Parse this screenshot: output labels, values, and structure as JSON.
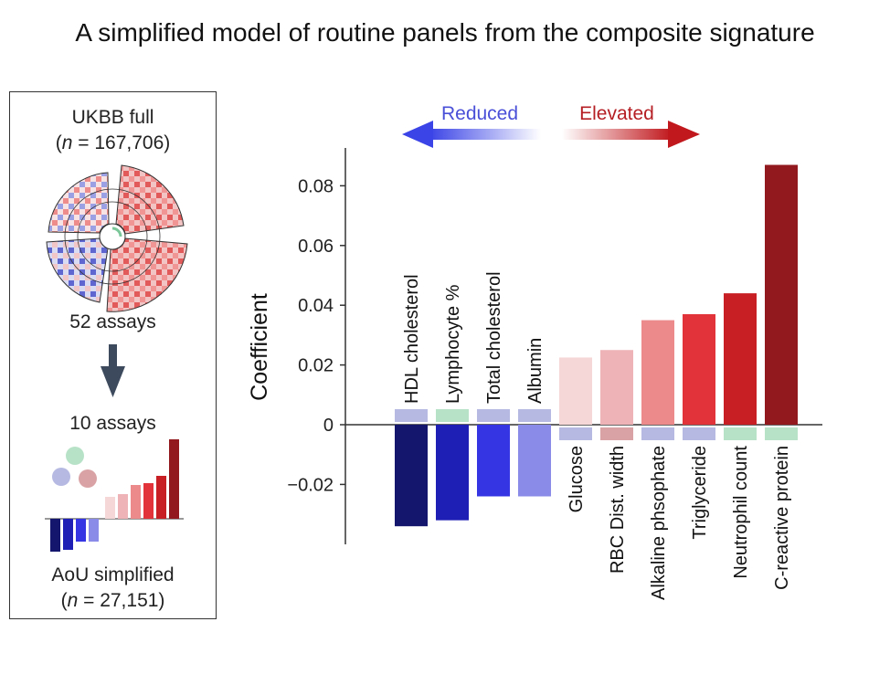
{
  "title": "A simplified model of routine panels from the composite signature",
  "left_panel": {
    "cohort_full": "UKBB full",
    "cohort_full_n_prefix": "(",
    "cohort_full_n_italic": "n",
    "cohort_full_n_value": " = 167,706)",
    "assays_full": "52 assays",
    "assays_simplified": "10 assays",
    "cohort_simplified": "AoU simplified",
    "cohort_simplified_n_prefix": "(",
    "cohort_simplified_n_italic": "n",
    "cohort_simplified_n_value": " = 27,151)"
  },
  "legend": {
    "reduced": "Reduced",
    "elevated": "Elevated",
    "reduced_color": "#4a4fd8",
    "elevated_color": "#b51f24"
  },
  "chart_data": {
    "type": "bar",
    "ylabel": "Coefficient",
    "ylim": [
      -0.04,
      0.09
    ],
    "yticks": [
      -0.02,
      0,
      0.02,
      0.04,
      0.06,
      0.08
    ],
    "ytick_labels": [
      "−0.02",
      "0",
      "0.02",
      "0.04",
      "0.06",
      "0.08"
    ],
    "categories": [
      "HDL cholesterol",
      "Lymphocyte %",
      "Total cholesterol",
      "Albumin",
      "Glucose",
      "RBC Dist. width",
      "Alkaline phsophate",
      "Triglyceride",
      "Neutrophil count",
      "C-reactive protein"
    ],
    "values": [
      -0.034,
      -0.032,
      -0.024,
      -0.024,
      0.0225,
      0.025,
      0.035,
      0.037,
      0.044,
      0.087
    ],
    "colors": [
      "#14166e",
      "#1e1fb4",
      "#3535e4",
      "#8a8ae8",
      "#f6d7d8",
      "#eeb3b6",
      "#ec898b",
      "#e13339",
      "#c81f25",
      "#921a1e"
    ],
    "group_marker_colors": [
      "#b6b9e2",
      "#b8e2c8",
      "#b6b9e2",
      "#b6b9e2",
      "#b6b9e2",
      "#d9a3a5",
      "#b6b9e2",
      "#b6b9e2",
      "#b8e2c8",
      "#b8e2c8"
    ],
    "group_palette": [
      "#b6b9e2",
      "#b8e2c8",
      "#d9a3a5"
    ]
  }
}
